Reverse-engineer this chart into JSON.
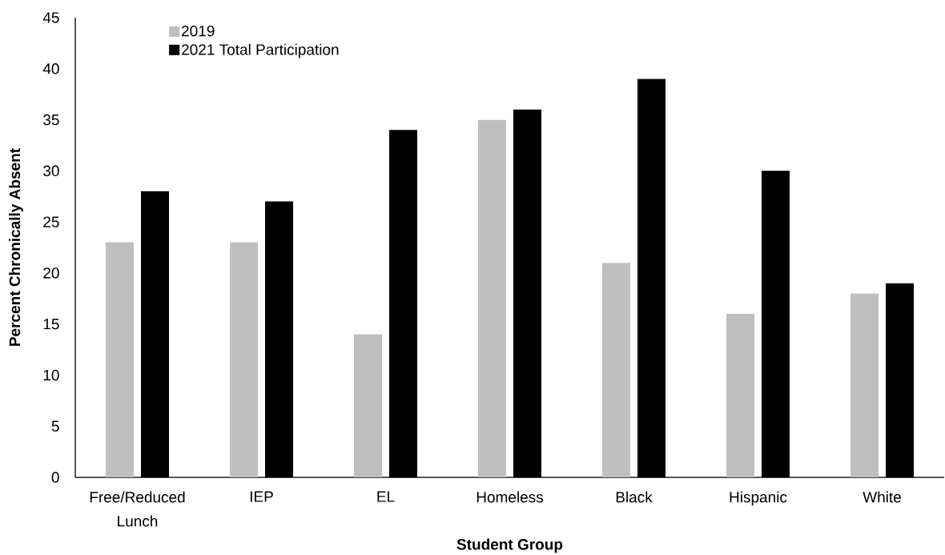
{
  "chart_data": {
    "type": "bar",
    "categories": [
      "Free/Reduced Lunch",
      "IEP",
      "EL",
      "Homeless",
      "Black",
      "Hispanic",
      "White"
    ],
    "series": [
      {
        "name": "2019",
        "color": "#bfbfbf",
        "values": [
          23,
          23,
          14,
          35,
          21,
          16,
          18
        ]
      },
      {
        "name": "2021 Total Participation",
        "color": "#000000",
        "values": [
          28,
          27,
          34,
          36,
          39,
          30,
          19
        ]
      }
    ],
    "xlabel": "Student Group",
    "ylabel": "Percent Chronically Absent",
    "ylim": [
      0,
      45
    ],
    "yticks": [
      0,
      5,
      10,
      15,
      20,
      25,
      30,
      35,
      40,
      45
    ],
    "grid": false,
    "legend": "top left"
  }
}
